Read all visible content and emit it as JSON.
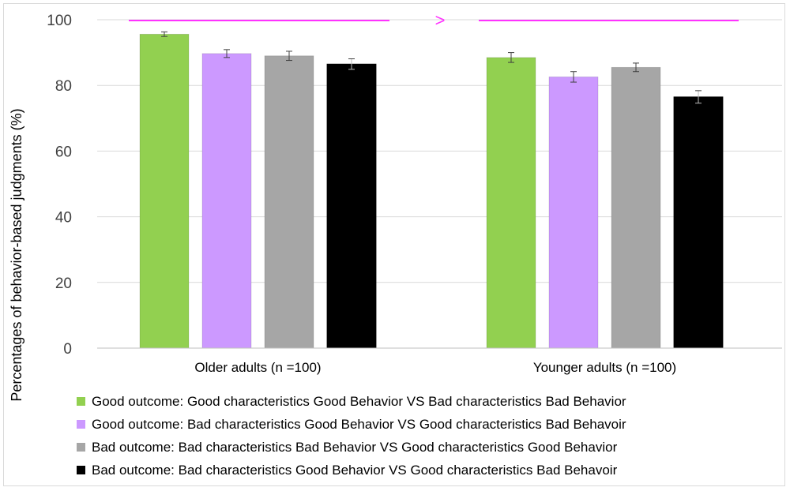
{
  "chart_data": {
    "type": "bar",
    "categories": [
      "Older adults (n =100)",
      "Younger adults (n =100)"
    ],
    "series": [
      {
        "name": "Good outcome: Good characteristics Good Behavior VS Bad characteristics Bad Behavior",
        "color": "#92d050",
        "values": [
          95.6,
          88.5
        ],
        "errors": [
          0.7,
          1.5
        ]
      },
      {
        "name": "Good outcome: Bad characteristics Good Behavior VS Good characteristics Bad Behavoir",
        "color": "#cc99ff",
        "values": [
          89.7,
          82.6
        ],
        "errors": [
          1.2,
          1.6
        ]
      },
      {
        "name": "Bad outcome: Bad characteristics Bad Behavior VS Good characteristics Good Behavior",
        "color": "#a6a6a6",
        "values": [
          89.0,
          85.5
        ],
        "errors": [
          1.4,
          1.3
        ]
      },
      {
        "name": "Bad outcome: Bad characteristics Good Behavior VS Good characteristics Bad Behavoir",
        "color": "#000000",
        "values": [
          86.5,
          76.5
        ],
        "errors": [
          1.6,
          1.9
        ]
      }
    ],
    "ylabel": "Percentages of behavior-based judgments (%)",
    "xlabel": "",
    "ylim": [
      0,
      100
    ],
    "yticks": [
      0,
      20,
      40,
      60,
      80,
      100
    ],
    "grid": true,
    "legend_position": "bottom",
    "annotation": {
      "symbol": ">",
      "color": "#ff33ff"
    }
  }
}
